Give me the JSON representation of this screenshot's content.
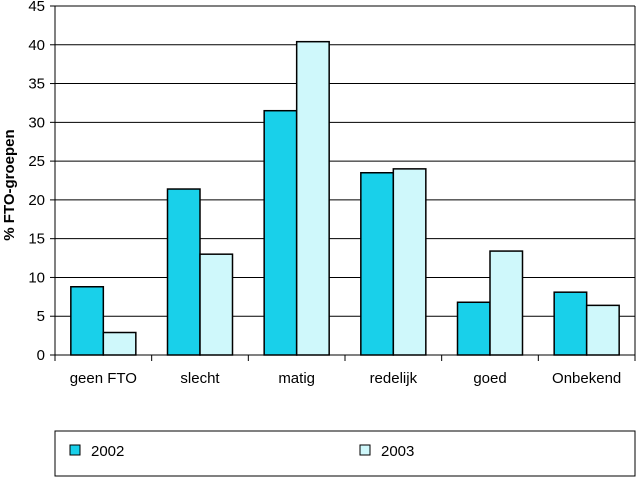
{
  "chart_data": {
    "type": "bar",
    "title": "",
    "xlabel": "",
    "ylabel": "% FTO-groepen",
    "ylim": [
      0,
      45
    ],
    "yticks": [
      0,
      5,
      10,
      15,
      20,
      25,
      30,
      35,
      40,
      45
    ],
    "grid": true,
    "legend_position": "bottom",
    "categories": [
      "geen FTO",
      "slecht",
      "matig",
      "redelijk",
      "goed",
      "Onbekend"
    ],
    "series": [
      {
        "name": "2002",
        "color": "#19d0ea",
        "values": [
          8.8,
          21.4,
          31.5,
          23.5,
          6.8,
          8.1
        ]
      },
      {
        "name": "2003",
        "color": "#cff8fb",
        "values": [
          2.9,
          13.0,
          40.4,
          24.0,
          13.4,
          6.4
        ]
      }
    ]
  }
}
